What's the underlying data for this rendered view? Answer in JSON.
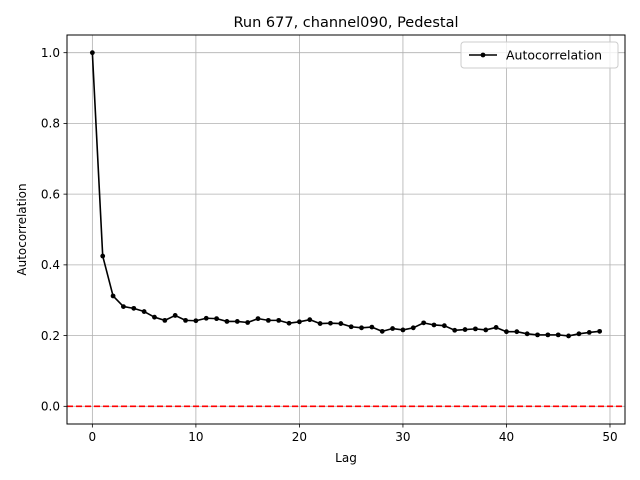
{
  "chart_data": {
    "type": "line",
    "title": "Run 677, channel090, Pedestal",
    "xlabel": "Lag",
    "ylabel": "Autocorrelation",
    "xlim": [
      -2.45,
      51.45
    ],
    "ylim": [
      -0.05,
      1.05
    ],
    "xticks": [
      0,
      10,
      20,
      30,
      40,
      50
    ],
    "yticks": [
      0.0,
      0.2,
      0.4,
      0.6,
      0.8,
      1.0
    ],
    "xtick_labels": [
      "0",
      "10",
      "20",
      "30",
      "40",
      "50"
    ],
    "ytick_labels": [
      "0.0",
      "0.2",
      "0.4",
      "0.6",
      "0.8",
      "1.0"
    ],
    "grid": true,
    "legend": {
      "position": "top-right",
      "entries": [
        "Autocorrelation"
      ]
    },
    "series": [
      {
        "name": "Autocorrelation",
        "color": "#000000",
        "marker": "circle",
        "x": [
          0,
          1,
          2,
          3,
          4,
          5,
          6,
          7,
          8,
          9,
          10,
          11,
          12,
          13,
          14,
          15,
          16,
          17,
          18,
          19,
          20,
          21,
          22,
          23,
          24,
          25,
          26,
          27,
          28,
          29,
          30,
          31,
          32,
          33,
          34,
          35,
          36,
          37,
          38,
          39,
          40,
          41,
          42,
          43,
          44,
          45,
          46,
          47,
          48,
          49
        ],
        "values": [
          1.0,
          0.425,
          0.312,
          0.282,
          0.277,
          0.268,
          0.252,
          0.243,
          0.257,
          0.243,
          0.242,
          0.249,
          0.248,
          0.24,
          0.24,
          0.237,
          0.248,
          0.243,
          0.243,
          0.235,
          0.239,
          0.245,
          0.234,
          0.235,
          0.234,
          0.225,
          0.222,
          0.224,
          0.212,
          0.22,
          0.216,
          0.222,
          0.236,
          0.23,
          0.228,
          0.215,
          0.217,
          0.219,
          0.216,
          0.223,
          0.211,
          0.211,
          0.205,
          0.202,
          0.202,
          0.202,
          0.199,
          0.205,
          0.209,
          0.212
        ]
      }
    ],
    "reference_line": {
      "y": 0.0,
      "color": "#ff0000",
      "style": "dashed"
    }
  }
}
